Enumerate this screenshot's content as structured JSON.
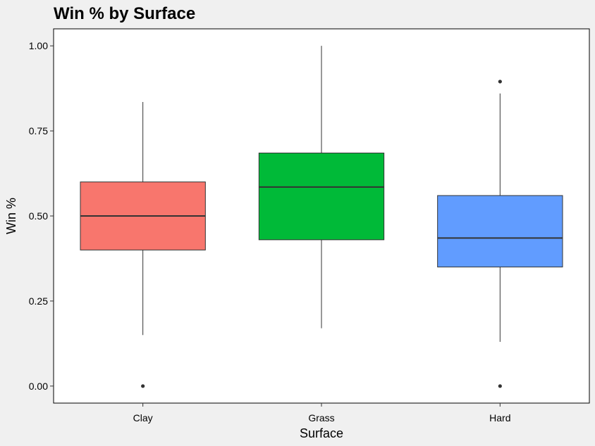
{
  "chart_data": {
    "type": "boxplot",
    "title": "Win % by Surface",
    "xlabel": "Surface",
    "ylabel": "Win %",
    "ylim": [
      -0.05,
      1.05
    ],
    "yticks": [
      0.0,
      0.25,
      0.5,
      0.75,
      1.0
    ],
    "ytick_labels": [
      "0.00",
      "0.25",
      "0.50",
      "0.75",
      "1.00"
    ],
    "grid": false,
    "legend": "none",
    "categories": [
      "Clay",
      "Grass",
      "Hard"
    ],
    "boxes": [
      {
        "category": "Clay",
        "color": "#F8766D",
        "whisker_low": 0.15,
        "q1": 0.4,
        "median": 0.5,
        "q3": 0.6,
        "whisker_high": 0.835,
        "outliers": [
          0.0
        ]
      },
      {
        "category": "Grass",
        "color": "#00BA38",
        "whisker_low": 0.17,
        "q1": 0.43,
        "median": 0.585,
        "q3": 0.685,
        "whisker_high": 1.0,
        "outliers": []
      },
      {
        "category": "Hard",
        "color": "#619CFF",
        "whisker_low": 0.13,
        "q1": 0.35,
        "median": 0.435,
        "q3": 0.56,
        "whisker_high": 0.86,
        "outliers": [
          0.0,
          0.895
        ]
      }
    ]
  }
}
